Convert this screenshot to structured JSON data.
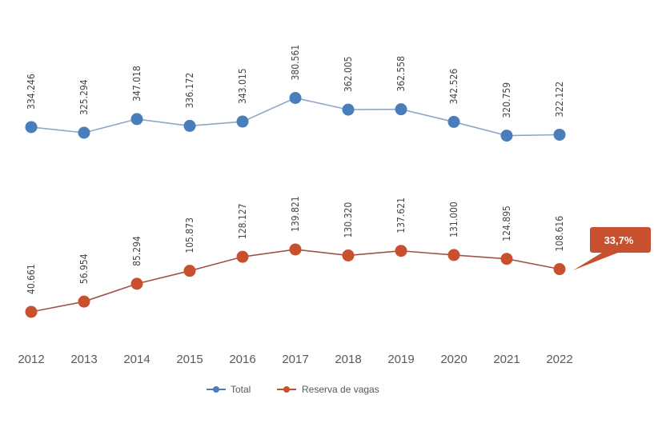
{
  "chart_data": {
    "type": "line",
    "categories": [
      "2012",
      "2013",
      "2014",
      "2015",
      "2016",
      "2017",
      "2018",
      "2019",
      "2020",
      "2021",
      "2022"
    ],
    "ylim": [
      0,
      400000
    ],
    "grid": false,
    "legend_position": "bottom",
    "series": [
      {
        "name": "Total",
        "color": "#4a7ebb",
        "values": [
          334246,
          325294,
          347018,
          336172,
          343015,
          380561,
          362005,
          362558,
          342526,
          320759,
          322122
        ],
        "labels": [
          "334.246",
          "325.294",
          "347.018",
          "336.172",
          "343.015",
          "380.561",
          "362.005",
          "362.558",
          "342.526",
          "320.759",
          "322.122"
        ]
      },
      {
        "name": "Reserva de vagas",
        "color": "#c9502f",
        "values": [
          40661,
          56954,
          85294,
          105873,
          128127,
          139821,
          130320,
          137621,
          131000,
          124895,
          108616
        ],
        "labels": [
          "40.661",
          "56.954",
          "85.294",
          "105.873",
          "128.127",
          "139.821",
          "130.320",
          "137.621",
          "131.000",
          "124.895",
          "108.616"
        ]
      }
    ],
    "annotation": {
      "text": "33,7%",
      "category": "2022",
      "series": "Reserva de vagas",
      "color": "#c9502f"
    }
  }
}
